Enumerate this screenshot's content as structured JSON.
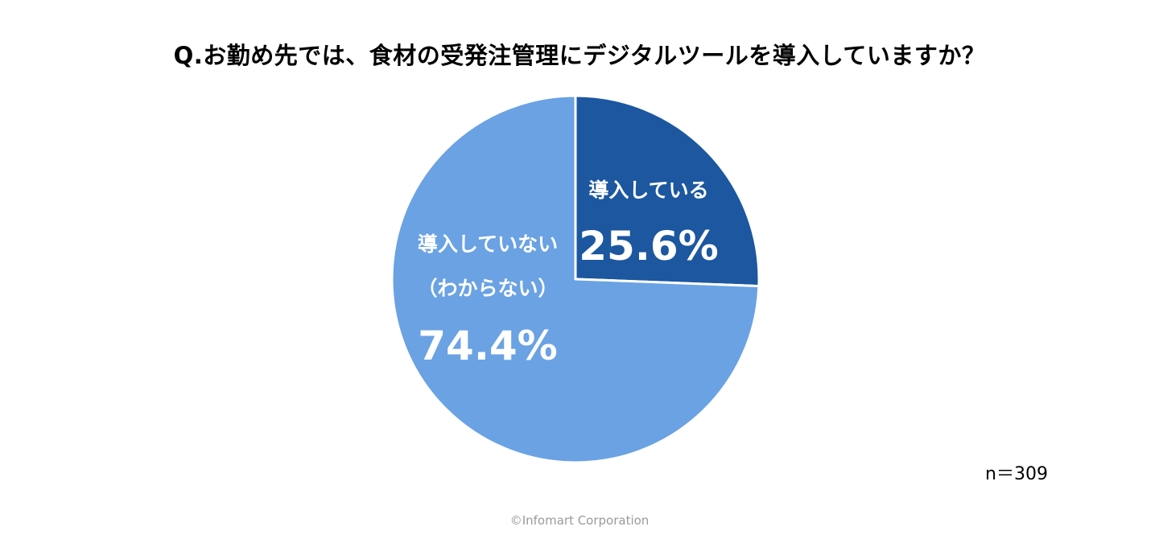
{
  "chart_data": {
    "type": "pie",
    "title": "Q.お勤め先では、食材の受発注管理にデジタルツールを導入していますか？",
    "slices": [
      {
        "label_lines": [
          "導入している"
        ],
        "value": 25.6,
        "value_label": "25.6%",
        "color": "#1c57a0"
      },
      {
        "label_lines": [
          "導入していない",
          "（わからない）"
        ],
        "value": 74.4,
        "value_label": "74.4%",
        "color": "#6aa2e3"
      }
    ],
    "start_angle": "12 o'clock",
    "direction": "clockwise",
    "legend": "none",
    "sample_size_label": "n＝309"
  },
  "footer": {
    "copyright": "©Infomart Corporation"
  }
}
